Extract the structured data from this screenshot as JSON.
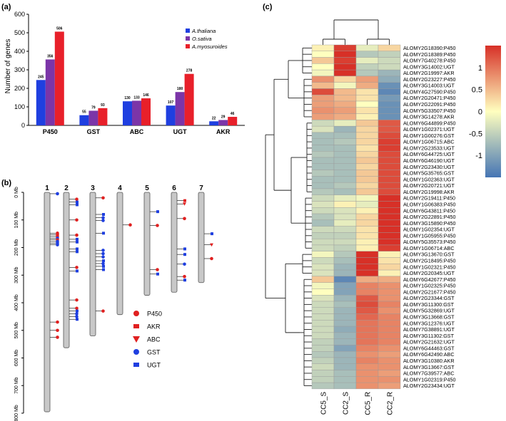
{
  "chart_data": [
    {
      "panel": "(a)",
      "type": "bar",
      "ylabel": "Number of genes",
      "ylim": [
        0,
        600
      ],
      "yticks": [
        "0",
        "100",
        "200",
        "300",
        "400",
        "500",
        "600"
      ],
      "categories": [
        "P450",
        "GST",
        "ABC",
        "UGT",
        "AKR"
      ],
      "series": [
        {
          "name": "A.thaliana",
          "color": "#1f3fe0",
          "values": [
            245,
            55,
            130,
            107,
            22
          ]
        },
        {
          "name": "O.sativa",
          "color": "#7b35a8",
          "values": [
            356,
            79,
            133,
            180,
            29
          ]
        },
        {
          "name": "A.myosuroides",
          "color": "#e8202a",
          "values": [
            506,
            93,
            146,
            278,
            46
          ]
        }
      ],
      "value_labels": [
        [
          "245",
          "55",
          "130",
          "107",
          "22"
        ],
        [
          "356",
          "79",
          "133",
          "180",
          "29"
        ],
        [
          "506",
          "93",
          "146",
          "278",
          "46"
        ]
      ]
    },
    {
      "panel": "(b)",
      "type": "chromosome-map",
      "axis_ticks": [
        "0 Mb",
        "100 Mb",
        "200 Mb",
        "300 Mb",
        "400 Mb",
        "500 Mb",
        "600 Mb",
        "700 Mb",
        "800 Mb"
      ],
      "axis_max": 800,
      "chromosomes": [
        {
          "label": "1",
          "length": 795,
          "genes": [
            {
              "pos": 5,
              "type": "GST"
            },
            {
              "pos": 148,
              "type": "P450"
            },
            {
              "pos": 154,
              "type": "P450"
            },
            {
              "pos": 160,
              "type": "P450"
            },
            {
              "pos": 166,
              "type": "GST"
            },
            {
              "pos": 172,
              "type": "P450"
            },
            {
              "pos": 178,
              "type": "GST"
            },
            {
              "pos": 184,
              "type": "GST"
            },
            {
              "pos": 190,
              "type": "GST"
            },
            {
              "pos": 470,
              "type": "P450"
            },
            {
              "pos": 500,
              "type": "P450"
            },
            {
              "pos": 525,
              "type": "P450"
            }
          ]
        },
        {
          "label": "2",
          "length": 563,
          "genes": [
            {
              "pos": 25,
              "type": "P450"
            },
            {
              "pos": 35,
              "type": "UGT"
            },
            {
              "pos": 45,
              "type": "UGT"
            },
            {
              "pos": 100,
              "type": "P450"
            },
            {
              "pos": 155,
              "type": "P450"
            },
            {
              "pos": 170,
              "type": "UGT"
            },
            {
              "pos": 180,
              "type": "UGT"
            },
            {
              "pos": 205,
              "type": "UGT"
            },
            {
              "pos": 215,
              "type": "UGT"
            },
            {
              "pos": 272,
              "type": "P450"
            },
            {
              "pos": 285,
              "type": "UGT"
            },
            {
              "pos": 390,
              "type": "P450"
            },
            {
              "pos": 420,
              "type": "P450"
            },
            {
              "pos": 430,
              "type": "UGT"
            },
            {
              "pos": 440,
              "type": "GST"
            },
            {
              "pos": 450,
              "type": "GST"
            },
            {
              "pos": 460,
              "type": "UGT"
            }
          ]
        },
        {
          "label": "3",
          "length": 520,
          "genes": [
            {
              "pos": 20,
              "type": "P450"
            },
            {
              "pos": 80,
              "type": "UGT"
            },
            {
              "pos": 92,
              "type": "GST"
            },
            {
              "pos": 102,
              "type": "GST"
            },
            {
              "pos": 148,
              "type": "UGT"
            },
            {
              "pos": 210,
              "type": "GST"
            },
            {
              "pos": 222,
              "type": "GST"
            },
            {
              "pos": 234,
              "type": "GST"
            },
            {
              "pos": 248,
              "type": "UGT"
            },
            {
              "pos": 258,
              "type": "GST"
            },
            {
              "pos": 268,
              "type": "UGT"
            },
            {
              "pos": 280,
              "type": "UGT"
            },
            {
              "pos": 430,
              "type": "P450"
            }
          ]
        },
        {
          "label": "4",
          "length": 443,
          "genes": [
            {
              "pos": 118,
              "type": "P450"
            }
          ]
        },
        {
          "label": "5",
          "length": 373,
          "genes": [
            {
              "pos": 70,
              "type": "UGT"
            },
            {
              "pos": 120,
              "type": "P450"
            },
            {
              "pos": 280,
              "type": "P450"
            },
            {
              "pos": 296,
              "type": "UGT"
            }
          ]
        },
        {
          "label": "6",
          "length": 362,
          "genes": [
            {
              "pos": 30,
              "type": "AKR"
            },
            {
              "pos": 42,
              "type": "ABC"
            },
            {
              "pos": 95,
              "type": "P450"
            },
            {
              "pos": 205,
              "type": "UGT"
            },
            {
              "pos": 225,
              "type": "UGT"
            },
            {
              "pos": 260,
              "type": "GST"
            },
            {
              "pos": 305,
              "type": "P450"
            },
            {
              "pos": 318,
              "type": "UGT"
            }
          ]
        },
        {
          "label": "7",
          "length": 327,
          "genes": [
            {
              "pos": 150,
              "type": "UGT"
            },
            {
              "pos": 190,
              "type": "ABC"
            },
            {
              "pos": 240,
              "type": "P450"
            }
          ]
        }
      ],
      "legend": [
        {
          "label": "P450",
          "shape": "circle",
          "color": "#e02020"
        },
        {
          "label": "AKR",
          "shape": "square",
          "color": "#e02020"
        },
        {
          "label": "ABC",
          "shape": "triangle",
          "color": "#e02020"
        },
        {
          "label": "GST",
          "shape": "circle",
          "color": "#1f3fe0"
        },
        {
          "label": "UGT",
          "shape": "square",
          "color": "#1f3fe0"
        }
      ]
    },
    {
      "panel": "(c)",
      "type": "heatmap",
      "columns": [
        "CC5_S",
        "CC2_S",
        "CC5_R",
        "CC2_R"
      ],
      "colorbar_ticks": [
        "1",
        "0.5",
        "0",
        "-0.5",
        "-1"
      ],
      "colorbar_range": [
        -1.5,
        1.5
      ],
      "rows": [
        {
          "gene": "ALOMY2G18390:P450",
          "values": [
            0.1,
            1.4,
            -0.2,
            0.3
          ]
        },
        {
          "gene": "ALOMY2G18389:P450",
          "values": [
            0.0,
            1.5,
            -0.6,
            -0.5
          ]
        },
        {
          "gene": "ALOMY7G40278:P450",
          "values": [
            0.4,
            1.4,
            -0.2,
            -0.4
          ]
        },
        {
          "gene": "ALOMY3G14002:UGT",
          "values": [
            0.0,
            1.6,
            -0.5,
            -0.4
          ]
        },
        {
          "gene": "ALOMY2G19997:AKR",
          "values": [
            -0.1,
            1.5,
            -0.6,
            -0.8
          ]
        },
        {
          "gene": "ALOMY2G23227:P450",
          "values": [
            0.8,
            0.3,
            0.7,
            -0.9
          ]
        },
        {
          "gene": "ALOMY3G14003:UGT",
          "values": [
            0.5,
            -0.1,
            0.6,
            -1.2
          ]
        },
        {
          "gene": "ALOMY4G27590:P450",
          "values": [
            1.3,
            0.5,
            0.2,
            -1.3
          ]
        },
        {
          "gene": "ALOMY2G20471:P450",
          "values": [
            0.7,
            0.5,
            0.2,
            -1.1
          ]
        },
        {
          "gene": "ALOMY2G22091:P450",
          "values": [
            0.7,
            0.6,
            0.0,
            -1.2
          ]
        },
        {
          "gene": "ALOMY5G33507:P450",
          "values": [
            0.8,
            0.7,
            0.2,
            -1.2
          ]
        },
        {
          "gene": "ALOMY3G14278:AKR",
          "values": [
            0.7,
            0.6,
            0.1,
            -1.2
          ]
        },
        {
          "gene": "ALOMY6G44899:P450",
          "values": [
            -0.4,
            -0.2,
            0.4,
            1.2
          ]
        },
        {
          "gene": "ALOMY1G02371:UGT",
          "values": [
            -0.3,
            -0.8,
            0.3,
            1.2
          ]
        },
        {
          "gene": "ALOMY1G00276:GST",
          "values": [
            -0.7,
            -0.7,
            0.3,
            1.3
          ]
        },
        {
          "gene": "ALOMY1G06715:ABC",
          "values": [
            -0.7,
            -0.6,
            0.3,
            1.4
          ]
        },
        {
          "gene": "ALOMY2G23533:UGT",
          "values": [
            -0.7,
            -0.7,
            0.2,
            1.4
          ]
        },
        {
          "gene": "ALOMY6G44725:UGT",
          "values": [
            -0.6,
            -0.7,
            0.3,
            1.3
          ]
        },
        {
          "gene": "ALOMY6G46190:UGT",
          "values": [
            -0.7,
            -0.7,
            0.4,
            1.3
          ]
        },
        {
          "gene": "ALOMY2G23430:UGT",
          "values": [
            -0.7,
            -0.7,
            0.3,
            1.3
          ]
        },
        {
          "gene": "ALOMY5G35765:GST",
          "values": [
            -0.6,
            -0.7,
            0.4,
            1.3
          ]
        },
        {
          "gene": "ALOMY1G02363:UGT",
          "values": [
            -0.7,
            -0.7,
            0.4,
            1.3
          ]
        },
        {
          "gene": "ALOMY2G20721:UGT",
          "values": [
            -0.7,
            -0.6,
            0.3,
            1.3
          ]
        },
        {
          "gene": "ALOMY2G19998:AKR",
          "values": [
            -0.6,
            -0.7,
            0.4,
            1.3
          ]
        },
        {
          "gene": "ALOMY2G19411:P450",
          "values": [
            -0.4,
            -0.2,
            -0.1,
            1.5
          ]
        },
        {
          "gene": "ALOMY1G06383:P450",
          "values": [
            -0.3,
            0.1,
            -0.2,
            1.5
          ]
        },
        {
          "gene": "ALOMY6G43811:P450",
          "values": [
            -0.4,
            -0.3,
            0.1,
            1.5
          ]
        },
        {
          "gene": "ALOMY2G22891:P450",
          "values": [
            -0.6,
            -0.3,
            0.3,
            1.5
          ]
        },
        {
          "gene": "ALOMY3G15890:P450",
          "values": [
            -0.7,
            -0.2,
            0.3,
            1.5
          ]
        },
        {
          "gene": "ALOMY1G02354:UGT",
          "values": [
            -0.4,
            -0.4,
            0.2,
            1.5
          ]
        },
        {
          "gene": "ALOMY1G05955:P450",
          "values": [
            -0.5,
            -0.5,
            0.2,
            1.5
          ]
        },
        {
          "gene": "ALOMY5G35573:P450",
          "values": [
            -0.4,
            -0.4,
            0.1,
            1.5
          ]
        },
        {
          "gene": "ALOMY1G06714:ABC",
          "values": [
            -0.4,
            -0.5,
            0.1,
            1.4
          ]
        },
        {
          "gene": "ALOMY3G13670:GST",
          "values": [
            -0.1,
            -0.6,
            1.5,
            0.1
          ]
        },
        {
          "gene": "ALOMY2G18495:P450",
          "values": [
            -0.4,
            -0.7,
            1.5,
            0.2
          ]
        },
        {
          "gene": "ALOMY1G02321:P450",
          "values": [
            -0.3,
            -0.8,
            1.5,
            0.3
          ]
        },
        {
          "gene": "ALOMY2G20345:UGT",
          "values": [
            -0.3,
            -0.8,
            1.5,
            0.1
          ]
        },
        {
          "gene": "ALOMY6G42677:P450",
          "values": [
            0.4,
            -1.3,
            0.6,
            0.6
          ]
        },
        {
          "gene": "ALOMY1G02325:P450",
          "values": [
            -0.1,
            -1.0,
            0.9,
            0.8
          ]
        },
        {
          "gene": "ALOMY2G21677:P450",
          "values": [
            0.0,
            -1.0,
            0.9,
            0.8
          ]
        },
        {
          "gene": "ALOMY2G23344:GST",
          "values": [
            -0.3,
            -0.8,
            1.2,
            0.8
          ]
        },
        {
          "gene": "ALOMY3G11300:GST",
          "values": [
            -0.4,
            -0.7,
            1.3,
            0.9
          ]
        },
        {
          "gene": "ALOMY5G32869:UGT",
          "values": [
            -0.4,
            -0.8,
            1.2,
            0.8
          ]
        },
        {
          "gene": "ALOMY3G13668:GST",
          "values": [
            -0.4,
            -0.8,
            1.1,
            0.9
          ]
        },
        {
          "gene": "ALOMY3G12376:UGT",
          "values": [
            -0.4,
            -0.8,
            1.0,
            0.9
          ]
        },
        {
          "gene": "ALOMY7G38891:UGT",
          "values": [
            -0.4,
            -0.9,
            1.0,
            0.9
          ]
        },
        {
          "gene": "ALOMY3G11302:GST",
          "values": [
            -0.4,
            -0.8,
            1.0,
            0.9
          ]
        },
        {
          "gene": "ALOMY2G21632:UGT",
          "values": [
            -0.5,
            -0.8,
            1.0,
            0.9
          ]
        },
        {
          "gene": "ALOMY6G44463:GST",
          "values": [
            -0.5,
            -1.0,
            0.9,
            0.8
          ]
        },
        {
          "gene": "ALOMY6G42490:ABC",
          "values": [
            -0.6,
            -0.8,
            0.8,
            0.7
          ]
        },
        {
          "gene": "ALOMY3G10380:AKR",
          "values": [
            -0.5,
            -0.8,
            0.9,
            0.8
          ]
        },
        {
          "gene": "ALOMY3G13667:GST",
          "values": [
            -0.4,
            -0.8,
            0.8,
            0.8
          ]
        },
        {
          "gene": "ALOMY7G39577:ABC",
          "values": [
            -0.5,
            -0.7,
            0.8,
            0.7
          ]
        },
        {
          "gene": "ALOMY1G02319:P450",
          "values": [
            -0.5,
            -0.7,
            0.8,
            0.8
          ]
        },
        {
          "gene": "ALOMY2G23434:UGT",
          "values": [
            -0.6,
            -0.7,
            0.8,
            0.7
          ]
        }
      ]
    }
  ]
}
